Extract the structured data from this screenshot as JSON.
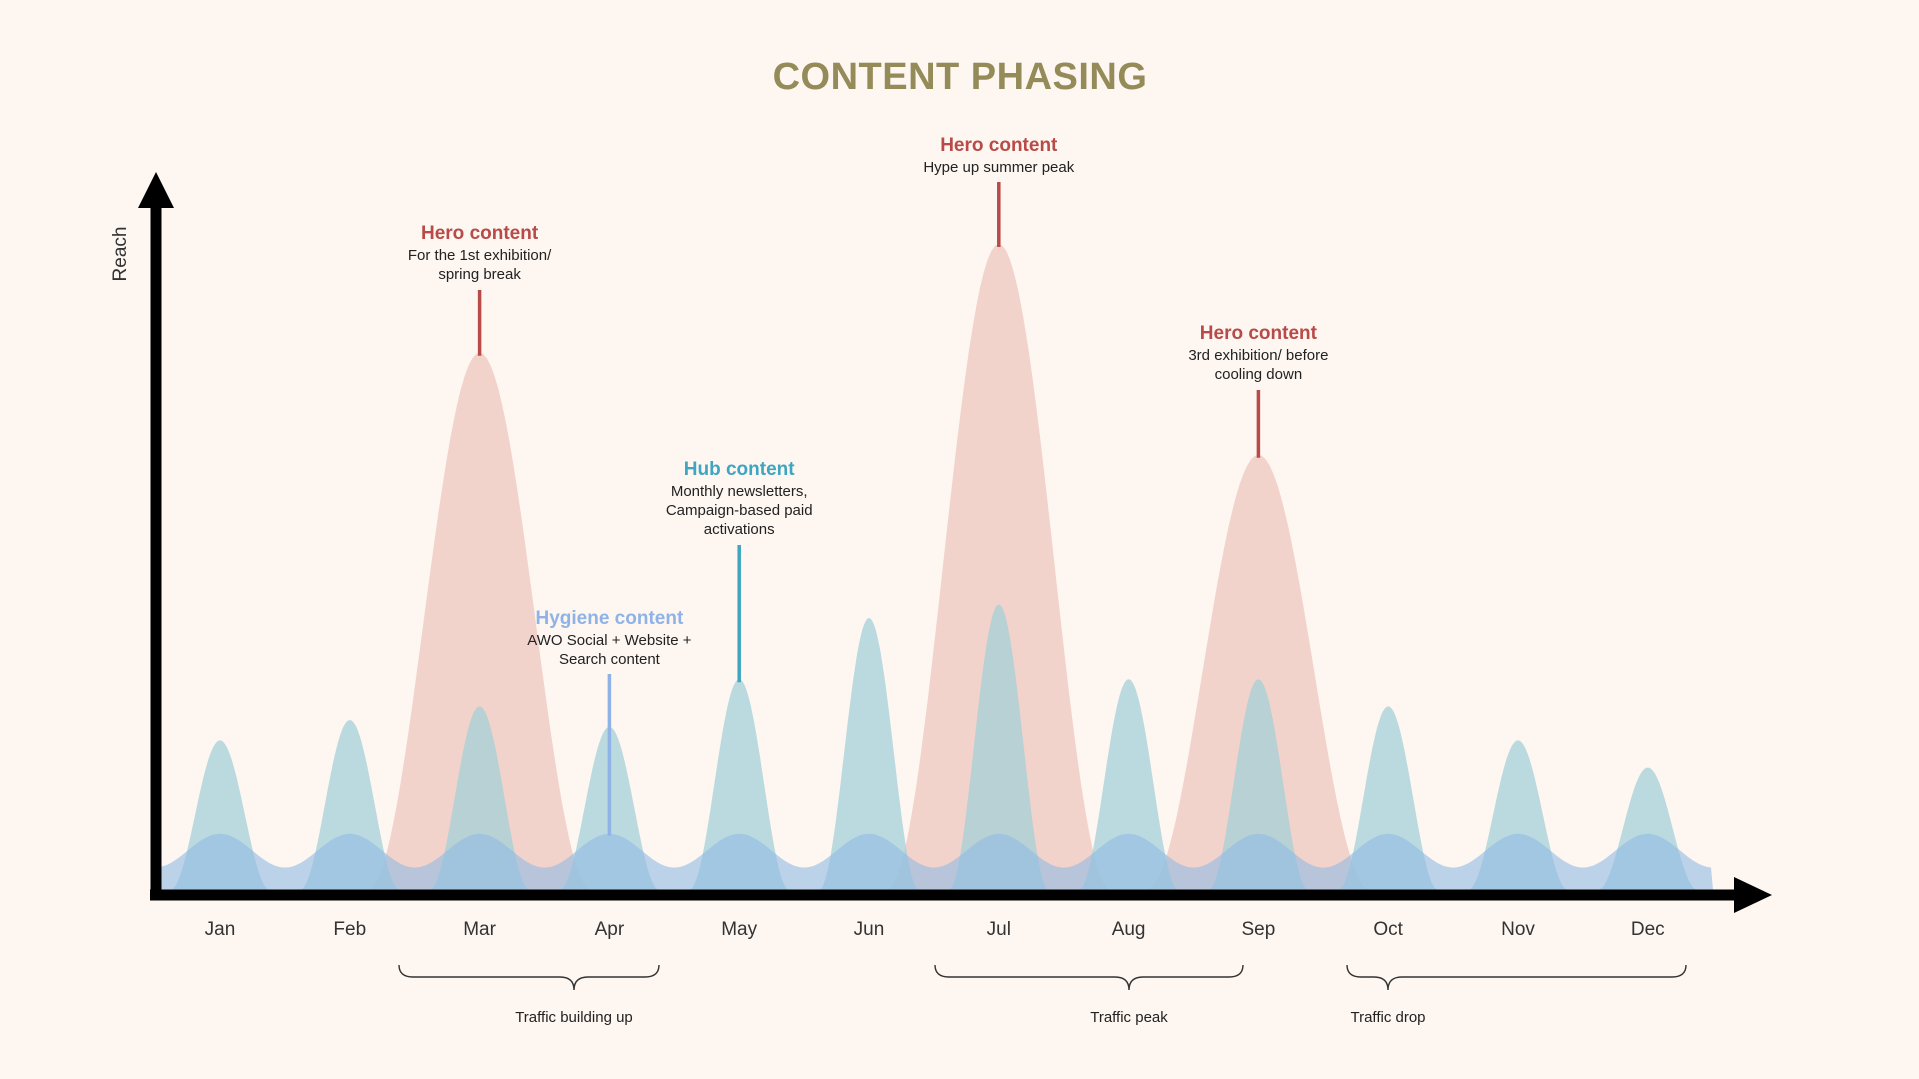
{
  "chart_data": {
    "type": "area",
    "title": "CONTENT PHASING",
    "ylabel": "Reach",
    "xlabel": "",
    "categories": [
      "Jan",
      "Feb",
      "Mar",
      "Apr",
      "May",
      "Jun",
      "Jul",
      "Aug",
      "Sep",
      "Oct",
      "Nov",
      "Dec"
    ],
    "ylim": [
      0,
      100
    ],
    "grid": false,
    "legend": "none",
    "series": [
      {
        "key": "hero",
        "color": "#f0cdc4",
        "peaks": [
          {
            "month": "Mar",
            "value": 79
          },
          {
            "month": "Jul",
            "value": 95
          },
          {
            "month": "Sep",
            "value": 64
          }
        ]
      },
      {
        "key": "hub",
        "color": "#a3d0d8",
        "values": [
          22,
          25,
          27,
          24,
          31,
          40,
          42,
          31,
          31,
          27,
          22,
          18
        ]
      },
      {
        "key": "hygiene",
        "color": "#93bce4",
        "values": [
          8,
          8,
          8,
          8,
          8,
          8,
          8,
          8,
          8,
          8,
          8,
          8
        ]
      }
    ],
    "annotations": [
      {
        "kind": "hero",
        "color": "#b84a47",
        "title": "Hero content",
        "lines": [
          "For the 1st exhibition/",
          "spring break"
        ],
        "month": "Mar",
        "value": 79
      },
      {
        "kind": "hero",
        "color": "#b84a47",
        "title": "Hero content",
        "lines": [
          "Hype up summer peak"
        ],
        "month": "Jul",
        "value": 95
      },
      {
        "kind": "hero",
        "color": "#b84a47",
        "title": "Hero content",
        "lines": [
          "3rd exhibition/ before",
          "cooling down"
        ],
        "month": "Sep",
        "value": 64
      },
      {
        "kind": "hub",
        "color": "#3ea6c0",
        "title": "Hub content",
        "lines": [
          "Monthly newsletters,",
          "Campaign-based paid",
          "activations"
        ],
        "month": "May",
        "value": 31
      },
      {
        "kind": "hygiene",
        "color": "#8fb3e6",
        "title": "Hygiene content",
        "lines": [
          "AWO Social + Website +",
          "Search content"
        ],
        "month": "Apr",
        "value": 8
      }
    ],
    "phases": [
      {
        "label": "Traffic building up",
        "from": "Mar",
        "to": "Apr"
      },
      {
        "label": "Traffic peak",
        "from": "Jul",
        "to": "Sep"
      },
      {
        "label": "Traffic drop",
        "from": "Oct",
        "to": "Dec"
      }
    ],
    "colors": {
      "title": "#948b58",
      "axis": "#000000",
      "background": "#fdf6f1"
    }
  }
}
